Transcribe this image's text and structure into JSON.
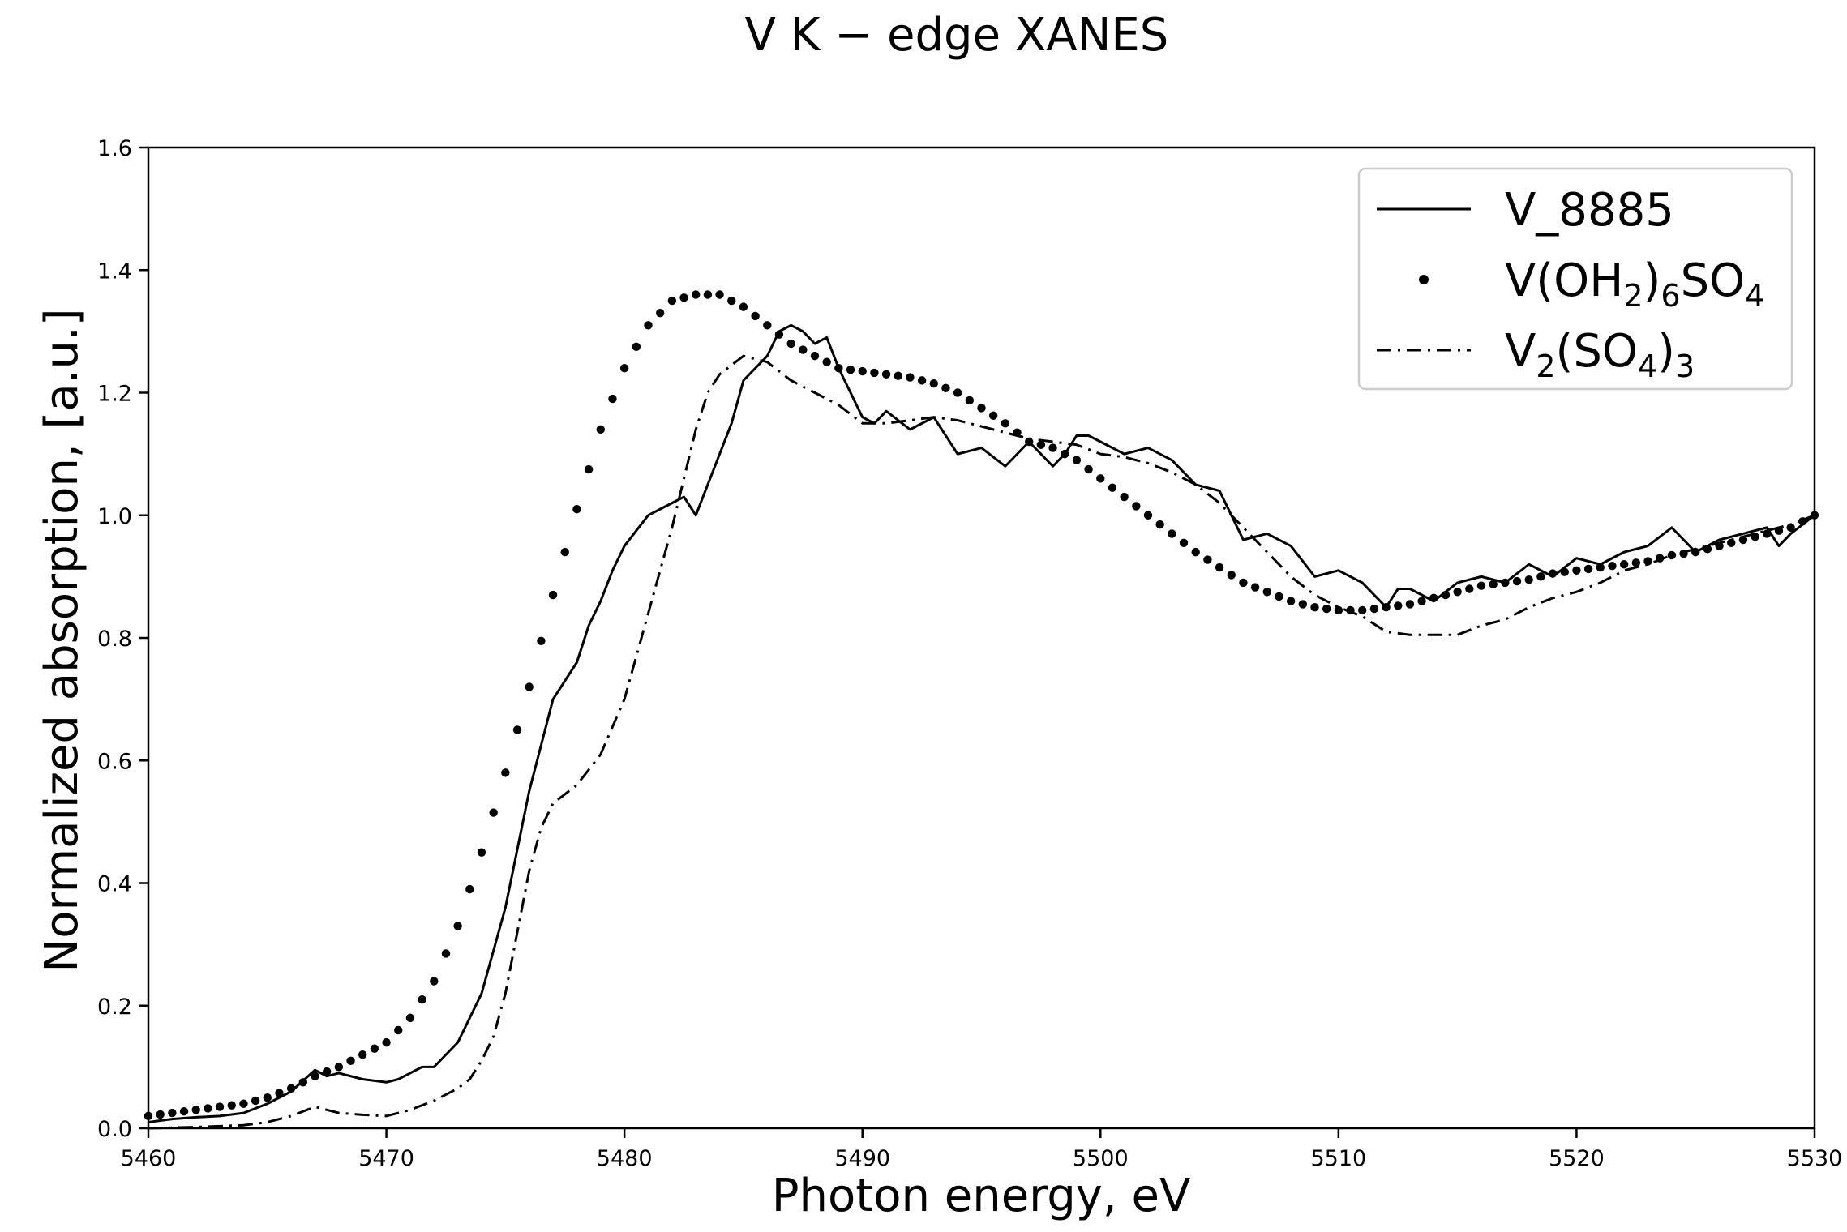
{
  "chart_data": {
    "type": "line",
    "title": "V K − edge XANES",
    "xlabel": "Photon energy, eV",
    "ylabel": "Normalized absorption, [a.u.]",
    "xlim": [
      5460,
      5530
    ],
    "ylim": [
      0.0,
      1.6
    ],
    "xticks": [
      5460,
      5470,
      5480,
      5490,
      5500,
      5510,
      5520,
      5530
    ],
    "xtick_labels": [
      "5460",
      "5470",
      "5480",
      "5490",
      "5500",
      "5510",
      "5520",
      "5530"
    ],
    "yticks": [
      0.0,
      0.2,
      0.4,
      0.6,
      0.8,
      1.0,
      1.2,
      1.4,
      1.6
    ],
    "ytick_labels": [
      "0.0",
      "0.2",
      "0.4",
      "0.6",
      "0.8",
      "1.0",
      "1.2",
      "1.4",
      "1.6"
    ],
    "grid": false,
    "legend_position": "top-right",
    "series": [
      {
        "name": "V_8885",
        "legend_label": {
          "base": "V_8885",
          "parts": []
        },
        "style": "solid",
        "color": "#000000",
        "x": [
          5460,
          5461,
          5462,
          5463,
          5464,
          5465,
          5466,
          5467,
          5467.5,
          5468,
          5469,
          5470,
          5470.5,
          5471,
          5471.5,
          5472,
          5472.5,
          5473,
          5474,
          5475,
          5476,
          5477,
          5478,
          5478.5,
          5479,
          5479.5,
          5480,
          5481,
          5482,
          5482.5,
          5483,
          5483.5,
          5484,
          5484.5,
          5485,
          5486,
          5486.5,
          5487,
          5487.5,
          5488,
          5488.5,
          5489,
          5490,
          5490.5,
          5491,
          5492,
          5493,
          5494,
          5495,
          5496,
          5497,
          5498,
          5498.5,
          5499,
          5499.5,
          5500,
          5501,
          5502,
          5503,
          5504,
          5505,
          5506,
          5507,
          5508,
          5509,
          5510,
          5511,
          5512,
          5512.5,
          5513,
          5514,
          5515,
          5516,
          5517,
          5518,
          5519,
          5520,
          5521,
          5522,
          5523,
          5524,
          5525,
          5526,
          5527,
          5528,
          5528.5,
          5529,
          5530
        ],
        "y": [
          0.01,
          0.015,
          0.018,
          0.02,
          0.025,
          0.04,
          0.06,
          0.095,
          0.085,
          0.09,
          0.08,
          0.075,
          0.08,
          0.09,
          0.1,
          0.1,
          0.12,
          0.14,
          0.22,
          0.36,
          0.55,
          0.7,
          0.76,
          0.82,
          0.86,
          0.91,
          0.95,
          1.0,
          1.02,
          1.03,
          1.0,
          1.05,
          1.1,
          1.15,
          1.22,
          1.26,
          1.3,
          1.31,
          1.3,
          1.28,
          1.29,
          1.24,
          1.16,
          1.15,
          1.17,
          1.14,
          1.16,
          1.1,
          1.11,
          1.08,
          1.12,
          1.08,
          1.1,
          1.13,
          1.13,
          1.12,
          1.1,
          1.11,
          1.09,
          1.05,
          1.04,
          0.96,
          0.97,
          0.95,
          0.9,
          0.91,
          0.89,
          0.85,
          0.88,
          0.88,
          0.86,
          0.89,
          0.9,
          0.89,
          0.92,
          0.9,
          0.93,
          0.92,
          0.94,
          0.95,
          0.98,
          0.94,
          0.96,
          0.97,
          0.98,
          0.95,
          0.97,
          1.0
        ]
      },
      {
        "name": "V(OH2)6SO4",
        "legend_label": {
          "base": "V(OH",
          "parts": [
            [
              "sub",
              "2"
            ],
            [
              "text",
              ")"
            ],
            [
              "sub",
              "6"
            ],
            [
              "text",
              "SO"
            ],
            [
              "sub",
              "4"
            ]
          ]
        },
        "style": "dotted",
        "color": "#000000",
        "x": [
          5460,
          5461,
          5462,
          5463,
          5464,
          5465,
          5466,
          5467,
          5468,
          5469,
          5470,
          5471,
          5472,
          5473,
          5474,
          5475,
          5476,
          5477,
          5478,
          5479,
          5480,
          5481,
          5482,
          5483,
          5484,
          5485,
          5486,
          5487,
          5488,
          5489,
          5490,
          5491,
          5492,
          5493,
          5494,
          5495,
          5496,
          5497,
          5498,
          5499,
          5500,
          5501,
          5502,
          5503,
          5504,
          5505,
          5506,
          5507,
          5508,
          5509,
          5510,
          5511,
          5512,
          5513,
          5514,
          5515,
          5516,
          5517,
          5518,
          5519,
          5520,
          5521,
          5522,
          5523,
          5524,
          5525,
          5526,
          5527,
          5528,
          5529,
          5530
        ],
        "y": [
          0.02,
          0.025,
          0.03,
          0.035,
          0.04,
          0.05,
          0.065,
          0.085,
          0.1,
          0.12,
          0.14,
          0.18,
          0.24,
          0.33,
          0.45,
          0.58,
          0.72,
          0.87,
          1.01,
          1.14,
          1.24,
          1.31,
          1.35,
          1.36,
          1.36,
          1.34,
          1.31,
          1.28,
          1.26,
          1.24,
          1.235,
          1.23,
          1.225,
          1.215,
          1.2,
          1.175,
          1.15,
          1.12,
          1.11,
          1.09,
          1.06,
          1.03,
          1.0,
          0.97,
          0.94,
          0.915,
          0.89,
          0.875,
          0.86,
          0.85,
          0.845,
          0.845,
          0.85,
          0.855,
          0.865,
          0.875,
          0.885,
          0.89,
          0.895,
          0.905,
          0.91,
          0.915,
          0.92,
          0.925,
          0.935,
          0.94,
          0.95,
          0.96,
          0.97,
          0.98,
          1.0
        ]
      },
      {
        "name": "V2(SO4)3",
        "legend_label": {
          "base": "V",
          "parts": [
            [
              "sub",
              "2"
            ],
            [
              "text",
              "(SO"
            ],
            [
              "sub",
              "4"
            ],
            [
              "text",
              ")"
            ],
            [
              "sub",
              "3"
            ]
          ]
        },
        "style": "dashdot",
        "color": "#000000",
        "x": [
          5460,
          5462,
          5464,
          5465,
          5466,
          5467,
          5468,
          5469,
          5470,
          5471,
          5472,
          5473,
          5473.5,
          5474,
          5474.5,
          5475,
          5475.5,
          5476,
          5476.5,
          5477,
          5478,
          5479,
          5480,
          5481,
          5482,
          5483,
          5483.5,
          5484,
          5485,
          5486,
          5487,
          5488,
          5489,
          5490,
          5491,
          5492,
          5493,
          5494,
          5495,
          5496,
          5497,
          5498,
          5499,
          5500,
          5501,
          5502,
          5503,
          5504,
          5505,
          5506,
          5507,
          5508,
          5509,
          5510,
          5511,
          5512,
          5513,
          5514,
          5515,
          5516,
          5517,
          5518,
          5519,
          5520,
          5521,
          5522,
          5523,
          5524,
          5525,
          5526,
          5527,
          5528,
          5529,
          5530
        ],
        "y": [
          0.0,
          0.002,
          0.005,
          0.01,
          0.02,
          0.035,
          0.025,
          0.022,
          0.02,
          0.03,
          0.045,
          0.065,
          0.08,
          0.11,
          0.15,
          0.22,
          0.32,
          0.42,
          0.49,
          0.53,
          0.56,
          0.61,
          0.7,
          0.84,
          0.98,
          1.14,
          1.2,
          1.23,
          1.26,
          1.25,
          1.22,
          1.2,
          1.18,
          1.15,
          1.15,
          1.155,
          1.16,
          1.155,
          1.145,
          1.135,
          1.125,
          1.12,
          1.115,
          1.1,
          1.095,
          1.085,
          1.07,
          1.05,
          1.02,
          0.98,
          0.94,
          0.9,
          0.87,
          0.85,
          0.835,
          0.81,
          0.805,
          0.805,
          0.805,
          0.82,
          0.83,
          0.85,
          0.865,
          0.875,
          0.89,
          0.91,
          0.92,
          0.935,
          0.945,
          0.955,
          0.965,
          0.975,
          0.985,
          1.0
        ]
      }
    ]
  }
}
